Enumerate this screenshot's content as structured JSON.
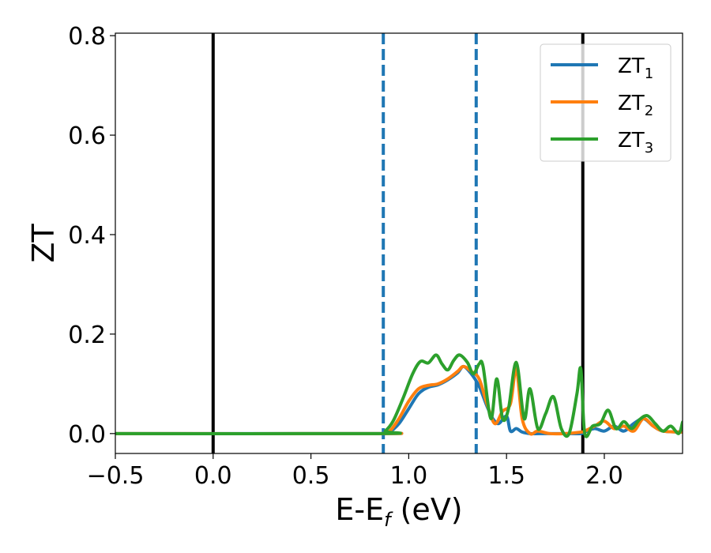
{
  "chart_data": {
    "type": "line",
    "xlabel": "E-E",
    "xlabel_sub": "f",
    "xlabel_unit": " (eV)",
    "ylabel": "ZT",
    "xlim": [
      -0.5,
      2.4
    ],
    "ylim": [
      -0.04,
      0.805
    ],
    "x_ticks": [
      -0.5,
      0.0,
      0.5,
      1.0,
      1.5,
      2.0
    ],
    "x_tick_labels": [
      "−0.5",
      "0.0",
      "0.5",
      "1.0",
      "1.5",
      "2.0"
    ],
    "y_ticks": [
      0.0,
      0.2,
      0.4,
      0.6,
      0.8
    ],
    "y_tick_labels": [
      "0.0",
      "0.2",
      "0.4",
      "0.6",
      "0.8"
    ],
    "grid": false,
    "legend_position": "top-right",
    "vlines": [
      {
        "x": 0.0,
        "style": "solid",
        "color": "#000000"
      },
      {
        "x": 0.87,
        "style": "dashed",
        "color": "#1f77b4"
      },
      {
        "x": 1.345,
        "style": "dashed",
        "color": "#1f77b4"
      },
      {
        "x": 1.89,
        "style": "solid",
        "color": "#000000"
      }
    ],
    "series": [
      {
        "name": "ZT",
        "name_sub": "1",
        "color": "#1f77b4",
        "x": [
          -0.5,
          0.85,
          0.9,
          0.95,
          1.0,
          1.05,
          1.1,
          1.15,
          1.2,
          1.25,
          1.28,
          1.32,
          1.36,
          1.4,
          1.43,
          1.46,
          1.5,
          1.52,
          1.55,
          1.58,
          1.62,
          1.7,
          1.8,
          1.88,
          1.9,
          1.95,
          2.0,
          2.05,
          2.1,
          2.15,
          2.2,
          2.25,
          2.3,
          2.4
        ],
        "y": [
          0.0,
          0.0,
          0.003,
          0.02,
          0.05,
          0.08,
          0.093,
          0.098,
          0.108,
          0.122,
          0.135,
          0.12,
          0.095,
          0.055,
          0.03,
          0.02,
          0.035,
          0.005,
          0.01,
          0.003,
          0.0,
          0.0,
          0.0,
          0.0,
          0.003,
          0.01,
          0.005,
          0.015,
          0.005,
          0.02,
          0.03,
          0.015,
          0.005,
          0.003
        ]
      },
      {
        "name": "ZT",
        "name_sub": "2",
        "color": "#ff7f0e",
        "x": [
          -0.5,
          0.85,
          0.9,
          0.95,
          1.0,
          1.05,
          1.1,
          1.15,
          1.2,
          1.25,
          1.28,
          1.32,
          1.36,
          1.4,
          1.44,
          1.48,
          1.52,
          1.55,
          1.58,
          1.62,
          1.66,
          1.72,
          1.8,
          1.88,
          1.9,
          1.95,
          2.0,
          2.05,
          2.1,
          2.15,
          2.2,
          2.25,
          2.3,
          2.4
        ],
        "y": [
          0.0,
          0.0,
          0.004,
          0.03,
          0.065,
          0.09,
          0.097,
          0.1,
          0.11,
          0.125,
          0.135,
          0.125,
          0.11,
          0.06,
          0.02,
          0.045,
          0.06,
          0.13,
          0.03,
          0.0,
          0.005,
          0.0,
          0.0,
          0.003,
          0.005,
          0.015,
          0.025,
          0.01,
          0.015,
          0.005,
          0.03,
          0.015,
          0.005,
          0.003
        ]
      },
      {
        "name": "ZT",
        "name_sub": "3",
        "color": "#2ca02c",
        "x": [
          -0.5,
          0.85,
          0.88,
          0.92,
          0.97,
          1.02,
          1.06,
          1.1,
          1.14,
          1.17,
          1.2,
          1.23,
          1.26,
          1.3,
          1.33,
          1.36,
          1.38,
          1.42,
          1.45,
          1.48,
          1.51,
          1.55,
          1.59,
          1.62,
          1.66,
          1.7,
          1.74,
          1.78,
          1.82,
          1.86,
          1.88,
          1.9,
          1.94,
          1.98,
          2.02,
          2.06,
          2.1,
          2.14,
          2.18,
          2.22,
          2.26,
          2.3,
          2.34,
          2.38,
          2.4
        ],
        "y": [
          0.0,
          0.0,
          0.005,
          0.025,
          0.07,
          0.12,
          0.145,
          0.142,
          0.158,
          0.14,
          0.128,
          0.147,
          0.158,
          0.143,
          0.12,
          0.14,
          0.135,
          0.03,
          0.11,
          0.03,
          0.05,
          0.143,
          0.03,
          0.09,
          0.01,
          0.04,
          0.074,
          0.01,
          0.0,
          0.08,
          0.13,
          0.0,
          0.015,
          0.02,
          0.047,
          0.01,
          0.024,
          0.01,
          0.028,
          0.036,
          0.02,
          0.005,
          0.015,
          0.0,
          0.023
        ]
      }
    ]
  }
}
